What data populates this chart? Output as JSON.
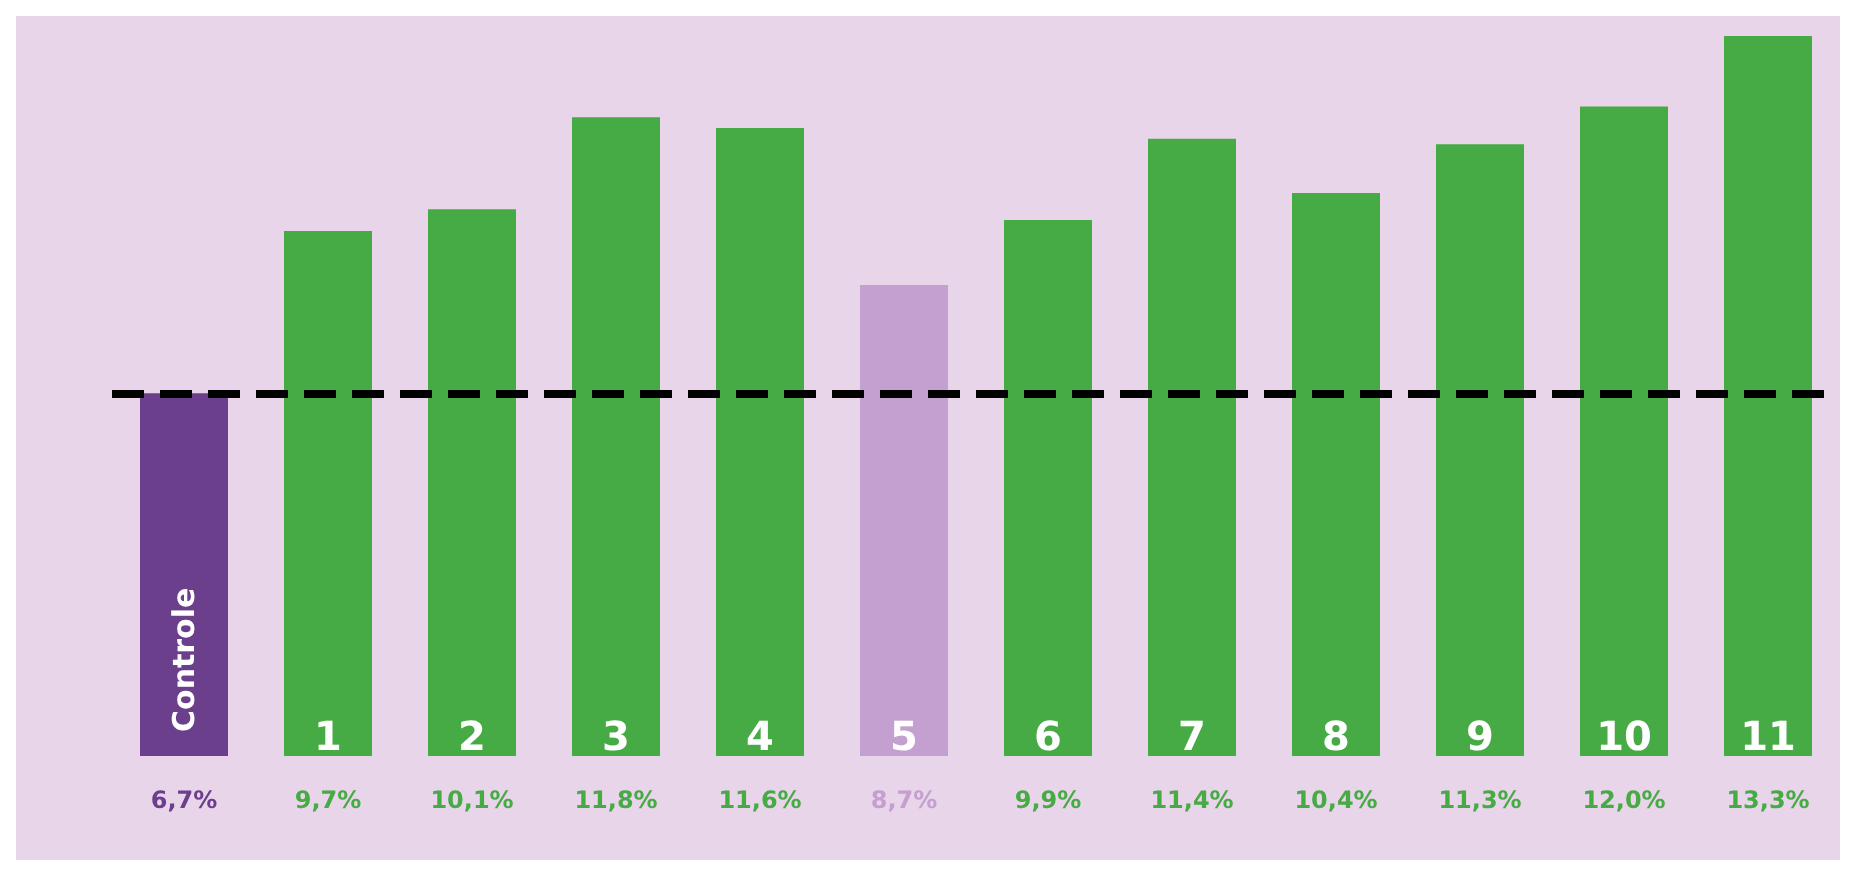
{
  "chart_data": {
    "type": "bar",
    "categories": [
      "Controle",
      "1",
      "2",
      "3",
      "4",
      "5",
      "6",
      "7",
      "8",
      "9",
      "10",
      "11"
    ],
    "values": [
      6.7,
      9.7,
      10.1,
      11.8,
      11.6,
      8.7,
      9.9,
      11.4,
      10.4,
      11.3,
      12.0,
      13.3
    ],
    "value_labels": [
      "6,7%",
      "9,7%",
      "10,1%",
      "11,8%",
      "11,6%",
      "8,7%",
      "9,9%",
      "11,4%",
      "10,4%",
      "11,3%",
      "12,0%",
      "13,3%"
    ],
    "colors": [
      "#6b3f8c",
      "#46ab44",
      "#46ab44",
      "#46ab44",
      "#46ab44",
      "#c3a0cf",
      "#46ab44",
      "#46ab44",
      "#46ab44",
      "#46ab44",
      "#46ab44",
      "#46ab44"
    ],
    "ylim": [
      0,
      13.3
    ],
    "ref_lines": [
      {
        "axis": "y",
        "value": 6.7,
        "color": "#000000",
        "line_style": "dashed"
      }
    ],
    "tick_labels": "x"
  }
}
